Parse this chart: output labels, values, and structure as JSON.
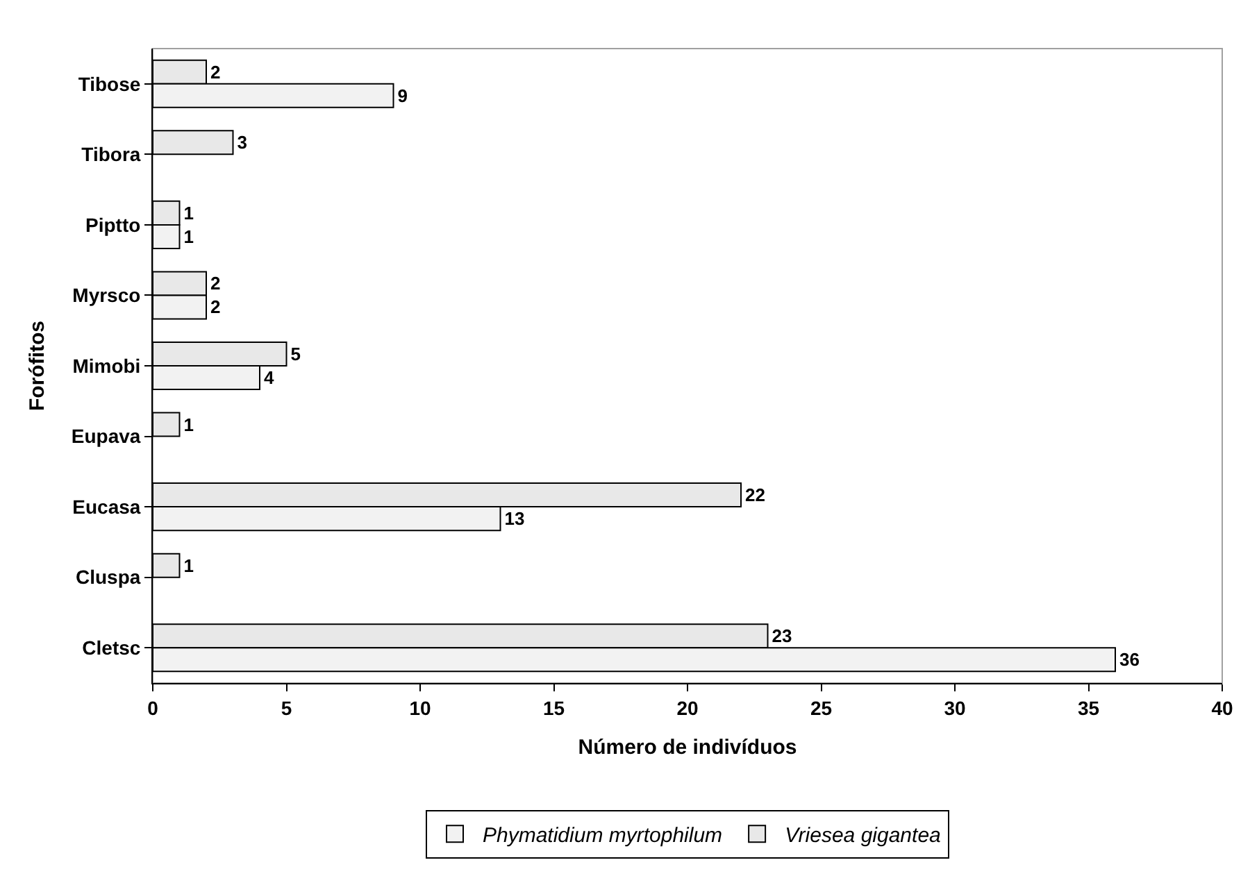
{
  "chart_data": {
    "type": "bar",
    "orientation": "horizontal",
    "xlabel": "Número de indivíduos",
    "ylabel": "Forófitos",
    "categories": [
      "Tibose",
      "Tibora",
      "Piptto",
      "Myrsco",
      "Mimobi",
      "Eupava",
      "Eucasa",
      "Cluspa",
      "Cletsc"
    ],
    "series": [
      {
        "name": "Vriesea gigantea",
        "color": "#e8e8e8",
        "values": [
          2,
          3,
          1,
          2,
          5,
          1,
          22,
          1,
          23
        ]
      },
      {
        "name": "Phymatidium myrtophilum",
        "color": "#f2f2f2",
        "values": [
          9,
          null,
          1,
          2,
          4,
          null,
          13,
          null,
          36
        ]
      }
    ],
    "xlim": [
      0,
      40
    ],
    "xticks": [
      0,
      5,
      10,
      15,
      20,
      25,
      30,
      35,
      40
    ],
    "data_labels": true,
    "grid": false,
    "legend": "bottom"
  }
}
